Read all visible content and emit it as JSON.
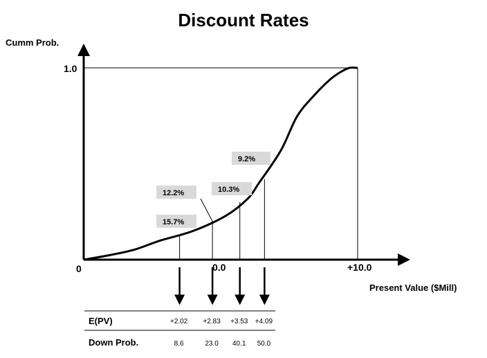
{
  "chart_data": {
    "type": "line",
    "title": "Discount Rates",
    "ylabel": "Cumm Prob.",
    "xlabel": "Present Value ($Mill)",
    "x_tick_labels": [
      "0",
      "0.0",
      "+10.0"
    ],
    "y_tick_labels": [
      "1.0"
    ],
    "series": [
      {
        "x": [
          0,
          0.08,
          0.18,
          0.28,
          0.4,
          0.52,
          0.6,
          0.64,
          0.72,
          0.78,
          0.85,
          0.9,
          0.94,
          0.97,
          1.0
        ],
        "y": [
          0,
          0.02,
          0.05,
          0.1,
          0.15,
          0.23,
          0.32,
          0.4,
          0.57,
          0.75,
          0.87,
          0.94,
          0.98,
          1.0,
          1.0
        ]
      }
    ],
    "markers": [
      {
        "label": "15.7%",
        "x": 0.35,
        "y": 0.13
      },
      {
        "label": "12.2%",
        "x": 0.47,
        "y": 0.2
      },
      {
        "label": "10.3%",
        "x": 0.57,
        "y": 0.3
      },
      {
        "label": "9.2%",
        "x": 0.66,
        "y": 0.42
      }
    ],
    "table": {
      "rows": [
        {
          "label": "E(PV)",
          "values": [
            "+2.02",
            "+2.83",
            "+3.53",
            "+4.09"
          ]
        },
        {
          "label": "Down Prob.",
          "values": [
            "8.6",
            "23.0",
            "40.1",
            "50.0"
          ]
        }
      ]
    }
  }
}
